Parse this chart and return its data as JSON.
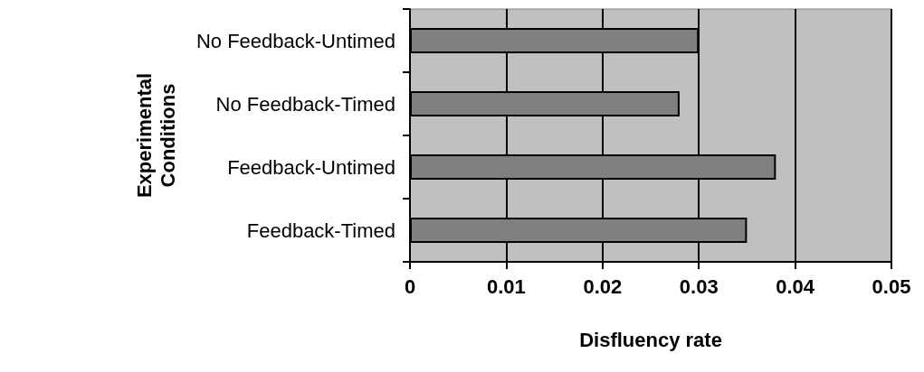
{
  "chart_data": {
    "type": "bar",
    "orientation": "horizontal",
    "xlabel": "Disfluency rate",
    "ylabel": "Experimental Conditions",
    "categories": [
      "No Feedback-Untimed",
      "No Feedback-Timed",
      "Feedback-Untimed",
      "Feedback-Timed"
    ],
    "values": [
      0.03,
      0.028,
      0.038,
      0.035
    ],
    "color": "#808080",
    "xlim": [
      0,
      0.05
    ],
    "xticks": [
      0,
      0.01,
      0.02,
      0.03,
      0.04,
      0.05
    ],
    "grid": "x"
  }
}
